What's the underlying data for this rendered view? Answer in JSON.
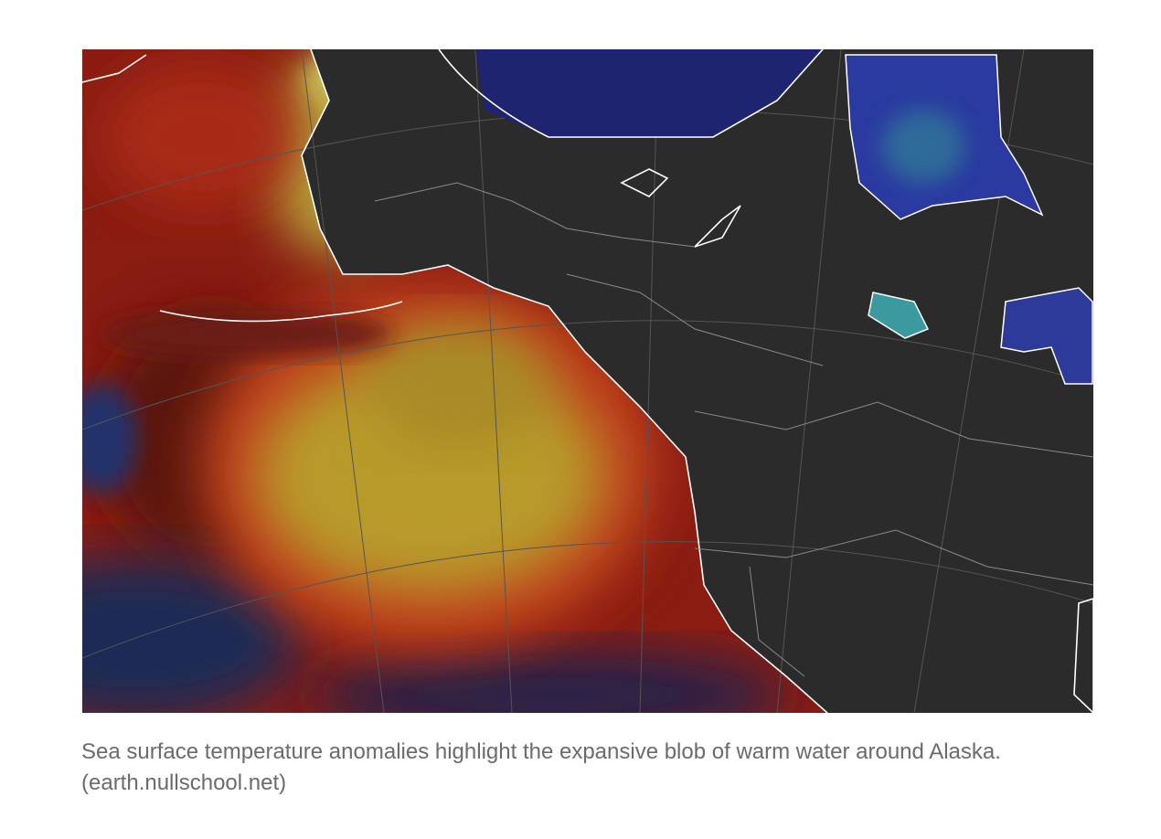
{
  "caption": "Sea surface temperature anomalies highlight the expansive blob of warm water around Alaska. (earth.nullschool.net)"
}
